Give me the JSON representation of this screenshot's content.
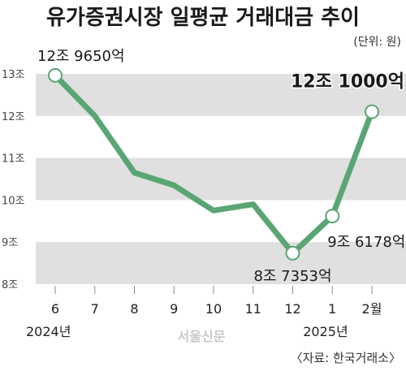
{
  "chart_data": {
    "type": "line",
    "title": "유가증권시장 일평균 거래대금 추이",
    "unit_note": "(단위: 원)",
    "x": [
      "6",
      "7",
      "8",
      "9",
      "10",
      "11",
      "12",
      "1",
      "2월"
    ],
    "year_labels": [
      {
        "text": "2024년",
        "at_index": 0
      },
      {
        "text": "2025년",
        "at_index": 7
      }
    ],
    "values": [
      12.965,
      12.0,
      10.65,
      10.35,
      9.75,
      9.9,
      8.7353,
      9.6178,
      12.1
    ],
    "y_ticks": [
      {
        "value": 8,
        "label": "8조"
      },
      {
        "value": 9,
        "label": "9조"
      },
      {
        "value": 10,
        "label": "10조"
      },
      {
        "value": 11,
        "label": "11조"
      },
      {
        "value": 12,
        "label": "12조"
      },
      {
        "value": 13,
        "label": "13조"
      }
    ],
    "ylim": [
      8,
      13
    ],
    "markers": [
      0,
      6,
      7,
      8
    ],
    "annotations": [
      {
        "index": 0,
        "text": "12조 9650억",
        "emphasis": false
      },
      {
        "index": 6,
        "text": "8조 7353억",
        "emphasis": false
      },
      {
        "index": 7,
        "text": "9조 6178억",
        "emphasis": false
      },
      {
        "index": 8,
        "text": "12조 1000억",
        "emphasis": true
      }
    ],
    "line_color": "#5aa574",
    "band_color": "#e0e0e0",
    "watermark": "서울신문",
    "source": "〈자료: 한국거래소〉"
  }
}
